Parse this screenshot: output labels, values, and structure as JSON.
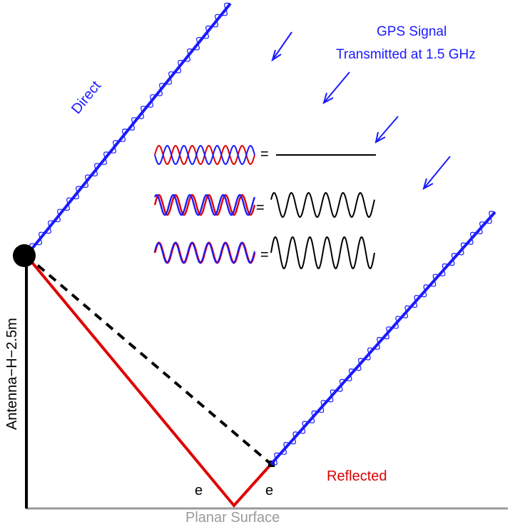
{
  "title": {
    "line1": "GPS Signal",
    "line2": "Transmitted at 1.5 GHz"
  },
  "labels": {
    "direct": "Direct",
    "reflected": "Reflected",
    "antenna": "Antenna−H−2.5m",
    "surface": "Planar Surface",
    "angle_left": "e",
    "angle_right": "e"
  },
  "legend": {
    "rows": [
      {
        "phase": "destructive",
        "equals": "="
      },
      {
        "phase": "partial",
        "equals": "="
      },
      {
        "phase": "constructive",
        "equals": "="
      }
    ]
  },
  "colors": {
    "signal": "#1a1aff",
    "reflected_path": "#e00000",
    "wave_blue": "#1a1aff",
    "wave_red": "#e00000",
    "sum_wave": "#000000",
    "surface": "#9a9a9a"
  }
}
